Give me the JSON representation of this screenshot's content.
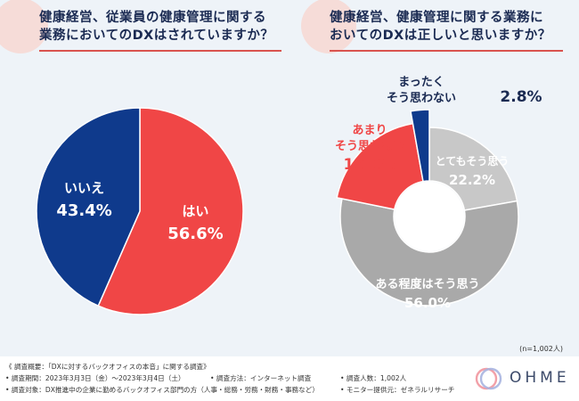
{
  "chart_data": [
    {
      "type": "pie",
      "title": "健康経営、従業員の健康管理に関する業務においてのDXはされていますか？",
      "title_lines": [
        "健康経営、従業員の健康管理に関する",
        "業務においてのDXはされていますか？"
      ],
      "categories": [
        "はい",
        "いいえ"
      ],
      "values": [
        56.6,
        43.4
      ],
      "value_labels": [
        "56.6%",
        "43.4%"
      ],
      "colors": [
        "#f04646",
        "#0f3a8c"
      ]
    },
    {
      "type": "pie",
      "subtype": "donut",
      "title": "健康経営、健康管理に関する業務においてのDXは正しいと思いますか？",
      "title_lines": [
        "健康経営、健康管理に関する業務に",
        "おいてのDXは正しいと思いますか？"
      ],
      "categories": [
        "とてもそう思う",
        "ある程度はそう思う",
        "あまりそう思わない",
        "まったくそう思わない"
      ],
      "label_lines": [
        [
          "とてもそう思う"
        ],
        [
          "ある程度はそう思う"
        ],
        [
          "あまり",
          "そう思わない"
        ],
        [
          "まったく",
          "そう思わない"
        ]
      ],
      "values": [
        22.2,
        56.0,
        19.0,
        2.8
      ],
      "value_labels": [
        "22.2%",
        "56.0%",
        "19.0%",
        "2.8%"
      ],
      "colors": [
        "#c8c8c8",
        "#a9a9a9",
        "#f04646",
        "#0f3a8c"
      ],
      "sample_note": "(n=1,002人)"
    }
  ],
  "footer": {
    "line1": "《 調査概要：「DXに対するバックオフィスの本音」に関する調査》",
    "period": "• 調査期間：2023年3月3日（金）～2023年3月4日（土）",
    "method": "• 調査方法：インターネット調査",
    "respondents": "• 調査人数：1,002人",
    "target": "• 調査対象：DX推進中の企業に勤めるバックオフィス部門の方（人事・総務・労務・財務・事務など）",
    "provider": "• モニター提供元：ゼネラルリサーチ"
  },
  "brand": {
    "name": "OHME"
  }
}
